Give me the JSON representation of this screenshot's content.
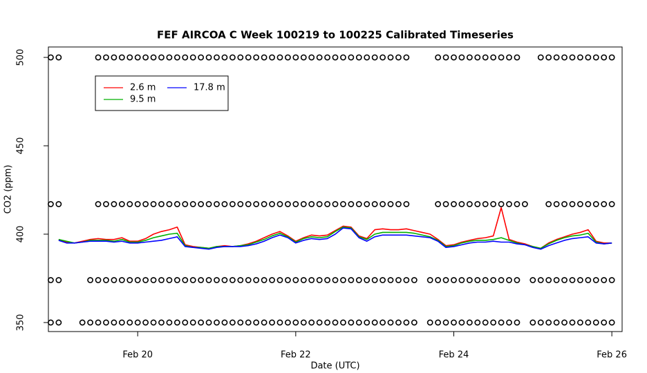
{
  "chart_data": {
    "type": "line",
    "title": "FEF AIRCOA C  Week 100219 to 100225  Calibrated Timeseries",
    "x_label": "Date (UTC)",
    "y_label": "CO2 (ppm)",
    "xlim": [
      18.87,
      26.13
    ],
    "ylim": [
      344.9,
      505.9
    ],
    "xticks": [
      {
        "value": 20,
        "label": "Feb 20"
      },
      {
        "value": 22,
        "label": "Feb 22"
      },
      {
        "value": 24,
        "label": "Feb 24"
      },
      {
        "value": 26,
        "label": "Feb 26"
      }
    ],
    "yticks": [
      350,
      400,
      450,
      500
    ],
    "legend": "top-left",
    "x": [
      19.0,
      19.1,
      19.2,
      19.3,
      19.4,
      19.5,
      19.6,
      19.7,
      19.8,
      19.9,
      20.0,
      20.1,
      20.2,
      20.3,
      20.4,
      20.5,
      20.6,
      20.7,
      20.8,
      20.9,
      21.0,
      21.1,
      21.2,
      21.3,
      21.4,
      21.5,
      21.6,
      21.7,
      21.8,
      21.9,
      22.0,
      22.1,
      22.2,
      22.3,
      22.4,
      22.5,
      22.6,
      22.7,
      22.8,
      22.9,
      23.0,
      23.1,
      23.2,
      23.3,
      23.4,
      23.5,
      23.6,
      23.7,
      23.8,
      23.9,
      24.0,
      24.1,
      24.2,
      24.3,
      24.4,
      24.5,
      24.6,
      24.7,
      24.8,
      24.9,
      25.0,
      25.1,
      25.2,
      25.3,
      25.4,
      25.5,
      25.6,
      25.7,
      25.8,
      25.9,
      26.0
    ],
    "series": [
      {
        "name": "2.6 m",
        "color": "#ff0000",
        "values": [
          397,
          395.5,
          395,
          396,
          397,
          397.5,
          397,
          397,
          398,
          396,
          396,
          397.5,
          400,
          401.5,
          402.5,
          404,
          394,
          393,
          392.5,
          392,
          393,
          393.5,
          393,
          393.5,
          394.5,
          396,
          398,
          400,
          401.5,
          399,
          396,
          398,
          399.5,
          399,
          399.5,
          402,
          404.5,
          404,
          399,
          397.5,
          402.5,
          403,
          402.5,
          402.5,
          403,
          402,
          401,
          400,
          397,
          393.5,
          394,
          395.5,
          396.5,
          397.5,
          398,
          399,
          415,
          397,
          395.5,
          394.5,
          393,
          392,
          395,
          397,
          398.5,
          400,
          401,
          402.5,
          396,
          395,
          395
        ]
      },
      {
        "name": "9.5 m",
        "color": "#00b000",
        "values": [
          397,
          396,
          395,
          395.5,
          396.5,
          396.5,
          396.5,
          396,
          397,
          395.5,
          395.5,
          396.5,
          398,
          399,
          400,
          400.5,
          393.5,
          392.5,
          392.5,
          392,
          393,
          393,
          393,
          393.5,
          394,
          395.5,
          397,
          399,
          400.5,
          398.5,
          395.5,
          397.5,
          398.5,
          398,
          398.5,
          401.5,
          404,
          403.5,
          398.5,
          397,
          400,
          401,
          401,
          401,
          401,
          400.5,
          399.5,
          398.5,
          396.5,
          393,
          393.5,
          395,
          396,
          396.5,
          396.5,
          397,
          398,
          396.5,
          395,
          394,
          393,
          392,
          394.5,
          396.5,
          398,
          399,
          399.5,
          400.5,
          395.5,
          394.5,
          395
        ]
      },
      {
        "name": "17.8 m",
        "color": "#0000ff",
        "values": [
          396.5,
          395,
          395,
          395.5,
          396,
          396,
          396,
          395.5,
          396,
          395,
          395,
          395.5,
          396,
          396.5,
          397.5,
          398.5,
          393,
          392.5,
          392,
          391.5,
          392.5,
          393,
          393,
          393,
          393.5,
          394.5,
          396,
          398,
          399.5,
          398,
          395,
          396.5,
          397.5,
          397,
          397.5,
          400,
          403.5,
          403,
          398,
          396,
          398.5,
          399.5,
          399.5,
          399.5,
          399.5,
          399,
          398.5,
          398,
          396,
          392.5,
          393,
          394,
          395,
          395.5,
          395.5,
          396,
          395.5,
          395.5,
          394.5,
          394,
          392.5,
          391.5,
          393.5,
          395,
          396.5,
          397.5,
          398,
          398.5,
          395,
          394.5,
          395
        ]
      }
    ],
    "points": [
      {
        "y": 500,
        "x": [
          18.9,
          19.0,
          19.5,
          19.6,
          19.7,
          19.8,
          19.9,
          20.0,
          20.1,
          20.2,
          20.3,
          20.4,
          20.5,
          20.6,
          20.7,
          20.8,
          20.9,
          21.0,
          21.1,
          21.2,
          21.3,
          21.4,
          21.5,
          21.6,
          21.7,
          21.8,
          21.9,
          22.0,
          22.1,
          22.2,
          22.3,
          22.4,
          22.5,
          22.6,
          22.7,
          22.8,
          22.9,
          23.0,
          23.1,
          23.2,
          23.3,
          23.4,
          23.8,
          23.9,
          24.0,
          24.1,
          24.2,
          24.3,
          24.4,
          24.5,
          24.6,
          24.7,
          24.8,
          25.1,
          25.2,
          25.3,
          25.4,
          25.5,
          25.6,
          25.7,
          25.8,
          25.9,
          26.0
        ]
      },
      {
        "y": 417,
        "x": [
          18.9,
          19.0,
          19.5,
          19.6,
          19.7,
          19.8,
          19.9,
          20.0,
          20.1,
          20.2,
          20.3,
          20.4,
          20.5,
          20.6,
          20.7,
          20.8,
          20.9,
          21.0,
          21.1,
          21.2,
          21.3,
          21.4,
          21.5,
          21.6,
          21.7,
          21.8,
          21.9,
          22.0,
          22.1,
          22.2,
          22.3,
          22.4,
          22.5,
          22.6,
          22.7,
          22.8,
          22.9,
          23.0,
          23.1,
          23.2,
          23.3,
          23.4,
          23.8,
          23.9,
          24.0,
          24.1,
          24.2,
          24.3,
          24.4,
          24.5,
          24.6,
          24.7,
          24.8,
          24.9,
          25.2,
          25.3,
          25.4,
          25.5,
          25.6,
          25.7,
          25.8,
          25.9,
          26.0
        ]
      },
      {
        "y": 374,
        "x": [
          18.9,
          19.0,
          19.4,
          19.5,
          19.6,
          19.7,
          19.8,
          19.9,
          20.0,
          20.1,
          20.2,
          20.3,
          20.4,
          20.5,
          20.6,
          20.7,
          20.8,
          20.9,
          21.0,
          21.1,
          21.2,
          21.3,
          21.4,
          21.5,
          21.6,
          21.7,
          21.8,
          21.9,
          22.0,
          22.1,
          22.2,
          22.3,
          22.4,
          22.5,
          22.6,
          22.7,
          22.8,
          22.9,
          23.0,
          23.1,
          23.2,
          23.3,
          23.4,
          23.5,
          23.7,
          23.8,
          23.9,
          24.0,
          24.1,
          24.2,
          24.3,
          24.4,
          24.5,
          24.6,
          24.7,
          24.8,
          25.0,
          25.1,
          25.2,
          25.3,
          25.4,
          25.5,
          25.6,
          25.7,
          25.8,
          25.9,
          26.0
        ]
      },
      {
        "y": 350,
        "x": [
          18.9,
          19.0,
          19.3,
          19.4,
          19.5,
          19.6,
          19.7,
          19.8,
          19.9,
          20.0,
          20.1,
          20.2,
          20.3,
          20.4,
          20.5,
          20.6,
          20.7,
          20.8,
          20.9,
          21.0,
          21.1,
          21.2,
          21.3,
          21.4,
          21.5,
          21.6,
          21.7,
          21.8,
          21.9,
          22.0,
          22.1,
          22.2,
          22.3,
          22.4,
          22.5,
          22.6,
          22.7,
          22.8,
          22.9,
          23.0,
          23.1,
          23.2,
          23.3,
          23.4,
          23.5,
          23.7,
          23.8,
          23.9,
          24.0,
          24.1,
          24.2,
          24.3,
          24.4,
          24.5,
          24.6,
          24.7,
          24.8,
          25.0,
          25.1,
          25.2,
          25.3,
          25.4,
          25.5,
          25.6,
          25.7,
          25.8,
          25.9,
          26.0
        ]
      }
    ]
  }
}
